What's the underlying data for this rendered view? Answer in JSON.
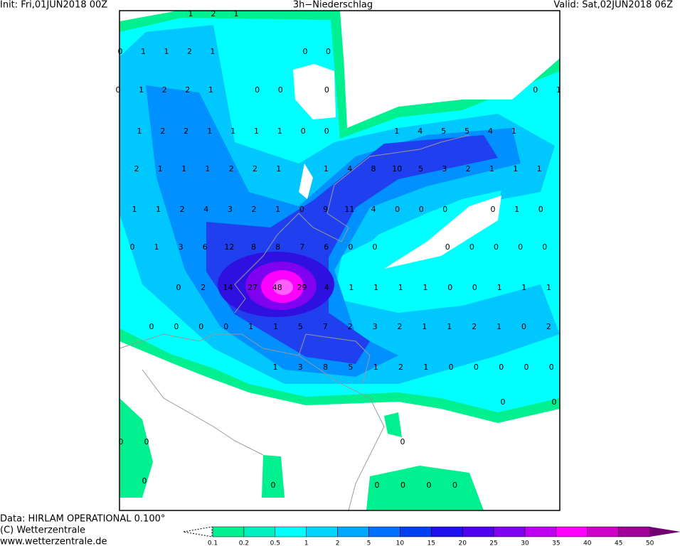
{
  "header": {
    "init": "Init: Fri,01JUN2018 00Z",
    "title": "3h−Niederschlag",
    "valid": "Valid: Sat,02JUN2018 06Z"
  },
  "footer": {
    "data": "Data: HIRLAM OPERATIONAL 0.100°",
    "copyright": "(C) Wetterzentrale",
    "url": "www.wetterzentrale.de"
  },
  "map": {
    "grid_values": [
      [
        1,
        2,
        1
      ],
      [
        0,
        1,
        1,
        2,
        1,
        null,
        null,
        null,
        0,
        0
      ],
      [
        0,
        1,
        2,
        2,
        1,
        null,
        0,
        0,
        null,
        0,
        null,
        null,
        null,
        null,
        null,
        null,
        null,
        null,
        0,
        1
      ],
      [
        1,
        2,
        2,
        1,
        1,
        1,
        1,
        0,
        0,
        null,
        null,
        1,
        4,
        5,
        5,
        4,
        1
      ],
      [
        2,
        1,
        1,
        1,
        2,
        2,
        1,
        null,
        1,
        4,
        8,
        10,
        5,
        3,
        2,
        1,
        1,
        1
      ],
      [
        1,
        1,
        2,
        4,
        3,
        2,
        1,
        0,
        9,
        11,
        4,
        0,
        0,
        0,
        null,
        0,
        1,
        0
      ],
      [
        0,
        1,
        3,
        6,
        12,
        8,
        8,
        7,
        6,
        0,
        0,
        null,
        null,
        0,
        0,
        0,
        0,
        0
      ],
      [
        0,
        2,
        14,
        27,
        48,
        29,
        4,
        1,
        1,
        1,
        1,
        0,
        0,
        1,
        1,
        1
      ],
      [
        0,
        0,
        0,
        0,
        1,
        1,
        5,
        7,
        2,
        3,
        2,
        1,
        1,
        2,
        1,
        0,
        2
      ],
      [
        1,
        3,
        8,
        5,
        1,
        2,
        1,
        0,
        0,
        0,
        0,
        0
      ],
      [
        0,
        null,
        0
      ],
      [
        0,
        0,
        null,
        null,
        null,
        null,
        null,
        null,
        null,
        null,
        null,
        0
      ],
      [
        0
      ],
      [
        0,
        null,
        null,
        null,
        0,
        0,
        0,
        0
      ]
    ]
  },
  "colorbar": {
    "levels": [
      0.1,
      0.2,
      0.5,
      1,
      2,
      5,
      10,
      15,
      20,
      25,
      30,
      35,
      40,
      45,
      50
    ],
    "colors": [
      "#00f090",
      "#00f0c0",
      "#00ffff",
      "#00d4ff",
      "#00a8ff",
      "#0070ff",
      "#0040f0",
      "#2010f0",
      "#5000f0",
      "#8000f0",
      "#c000f0",
      "#ff00ff",
      "#d000c8",
      "#a00098",
      "#700070"
    ]
  }
}
